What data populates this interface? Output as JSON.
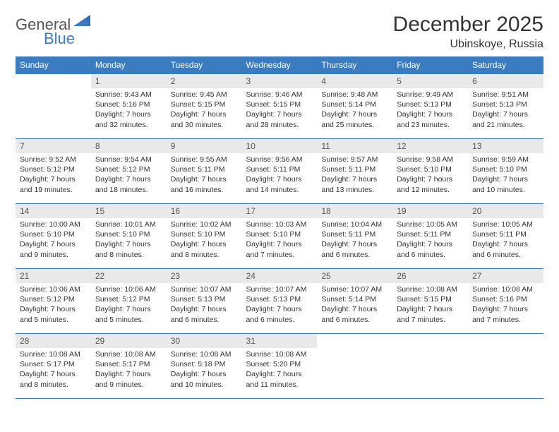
{
  "brand": {
    "part1": "General",
    "part2": "Blue"
  },
  "header": {
    "title": "December 2025",
    "location": "Ubinskoye, Russia"
  },
  "colors": {
    "accent": "#3b7bbf",
    "daybar": "#e9e9e9",
    "text": "#333333",
    "bg": "#ffffff"
  },
  "weekdays": [
    "Sunday",
    "Monday",
    "Tuesday",
    "Wednesday",
    "Thursday",
    "Friday",
    "Saturday"
  ],
  "weeks": [
    [
      null,
      {
        "n": "1",
        "sr": "9:43 AM",
        "ss": "5:16 PM",
        "dl": "7 hours and 32 minutes."
      },
      {
        "n": "2",
        "sr": "9:45 AM",
        "ss": "5:15 PM",
        "dl": "7 hours and 30 minutes."
      },
      {
        "n": "3",
        "sr": "9:46 AM",
        "ss": "5:15 PM",
        "dl": "7 hours and 28 minutes."
      },
      {
        "n": "4",
        "sr": "9:48 AM",
        "ss": "5:14 PM",
        "dl": "7 hours and 25 minutes."
      },
      {
        "n": "5",
        "sr": "9:49 AM",
        "ss": "5:13 PM",
        "dl": "7 hours and 23 minutes."
      },
      {
        "n": "6",
        "sr": "9:51 AM",
        "ss": "5:13 PM",
        "dl": "7 hours and 21 minutes."
      }
    ],
    [
      {
        "n": "7",
        "sr": "9:52 AM",
        "ss": "5:12 PM",
        "dl": "7 hours and 19 minutes."
      },
      {
        "n": "8",
        "sr": "9:54 AM",
        "ss": "5:12 PM",
        "dl": "7 hours and 18 minutes."
      },
      {
        "n": "9",
        "sr": "9:55 AM",
        "ss": "5:11 PM",
        "dl": "7 hours and 16 minutes."
      },
      {
        "n": "10",
        "sr": "9:56 AM",
        "ss": "5:11 PM",
        "dl": "7 hours and 14 minutes."
      },
      {
        "n": "11",
        "sr": "9:57 AM",
        "ss": "5:11 PM",
        "dl": "7 hours and 13 minutes."
      },
      {
        "n": "12",
        "sr": "9:58 AM",
        "ss": "5:10 PM",
        "dl": "7 hours and 12 minutes."
      },
      {
        "n": "13",
        "sr": "9:59 AM",
        "ss": "5:10 PM",
        "dl": "7 hours and 10 minutes."
      }
    ],
    [
      {
        "n": "14",
        "sr": "10:00 AM",
        "ss": "5:10 PM",
        "dl": "7 hours and 9 minutes."
      },
      {
        "n": "15",
        "sr": "10:01 AM",
        "ss": "5:10 PM",
        "dl": "7 hours and 8 minutes."
      },
      {
        "n": "16",
        "sr": "10:02 AM",
        "ss": "5:10 PM",
        "dl": "7 hours and 8 minutes."
      },
      {
        "n": "17",
        "sr": "10:03 AM",
        "ss": "5:10 PM",
        "dl": "7 hours and 7 minutes."
      },
      {
        "n": "18",
        "sr": "10:04 AM",
        "ss": "5:11 PM",
        "dl": "7 hours and 6 minutes."
      },
      {
        "n": "19",
        "sr": "10:05 AM",
        "ss": "5:11 PM",
        "dl": "7 hours and 6 minutes."
      },
      {
        "n": "20",
        "sr": "10:05 AM",
        "ss": "5:11 PM",
        "dl": "7 hours and 6 minutes."
      }
    ],
    [
      {
        "n": "21",
        "sr": "10:06 AM",
        "ss": "5:12 PM",
        "dl": "7 hours and 5 minutes."
      },
      {
        "n": "22",
        "sr": "10:06 AM",
        "ss": "5:12 PM",
        "dl": "7 hours and 5 minutes."
      },
      {
        "n": "23",
        "sr": "10:07 AM",
        "ss": "5:13 PM",
        "dl": "7 hours and 6 minutes."
      },
      {
        "n": "24",
        "sr": "10:07 AM",
        "ss": "5:13 PM",
        "dl": "7 hours and 6 minutes."
      },
      {
        "n": "25",
        "sr": "10:07 AM",
        "ss": "5:14 PM",
        "dl": "7 hours and 6 minutes."
      },
      {
        "n": "26",
        "sr": "10:08 AM",
        "ss": "5:15 PM",
        "dl": "7 hours and 7 minutes."
      },
      {
        "n": "27",
        "sr": "10:08 AM",
        "ss": "5:16 PM",
        "dl": "7 hours and 7 minutes."
      }
    ],
    [
      {
        "n": "28",
        "sr": "10:08 AM",
        "ss": "5:17 PM",
        "dl": "7 hours and 8 minutes."
      },
      {
        "n": "29",
        "sr": "10:08 AM",
        "ss": "5:17 PM",
        "dl": "7 hours and 9 minutes."
      },
      {
        "n": "30",
        "sr": "10:08 AM",
        "ss": "5:18 PM",
        "dl": "7 hours and 10 minutes."
      },
      {
        "n": "31",
        "sr": "10:08 AM",
        "ss": "5:20 PM",
        "dl": "7 hours and 11 minutes."
      },
      null,
      null,
      null
    ]
  ],
  "labels": {
    "sunrise": "Sunrise:",
    "sunset": "Sunset:",
    "daylight": "Daylight:"
  }
}
